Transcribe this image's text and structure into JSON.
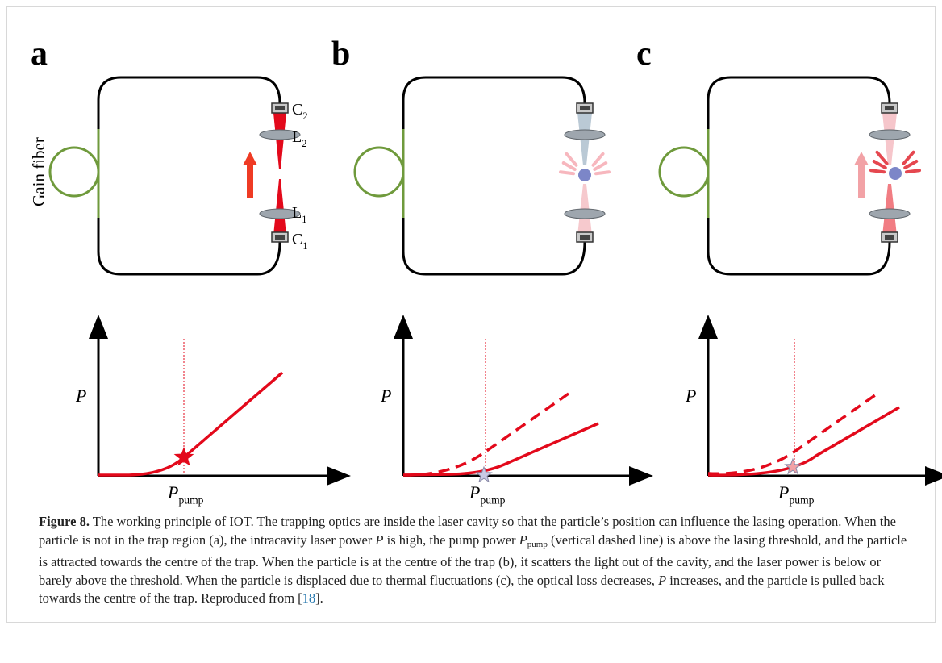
{
  "panels": [
    {
      "label": "a",
      "y_label": "P",
      "x_label": {
        "base": "P",
        "sub": "pump"
      }
    },
    {
      "label": "b",
      "y_label": "P",
      "x_label": {
        "base": "P",
        "sub": "pump"
      }
    },
    {
      "label": "c",
      "y_label": "P",
      "x_label": {
        "base": "P",
        "sub": "pump"
      }
    }
  ],
  "cavity_labels": {
    "gain_fiber": "Gain fiber",
    "c2": {
      "base": "C",
      "sub": "2"
    },
    "l2": {
      "base": "L",
      "sub": "2"
    },
    "l1": {
      "base": "L",
      "sub": "1"
    },
    "c1": {
      "base": "C",
      "sub": "1"
    }
  },
  "caption": {
    "label": "Figure 8.",
    "parts": [
      " The working principle of IOT. The trapping optics are inside the laser cavity so that the particle’s position can influence the lasing operation. When the particle is not in the trap region (a), the intracavity laser power ",
      "P",
      " is high, the pump power ",
      "P",
      "pump",
      " (vertical dashed line) is above the lasing threshold, and the particle is attracted towards the centre of the trap. When the particle is at the centre of the trap (b), it scatters the light out of the cavity, and the laser power is below or barely above the threshold. When the particle is displaced due to thermal fluctuations (c), the optical loss decreases, ",
      "P",
      " increases, and the particle is pulled back towards the centre of the trap. Reproduced from [",
      "18",
      "]."
    ]
  }
}
